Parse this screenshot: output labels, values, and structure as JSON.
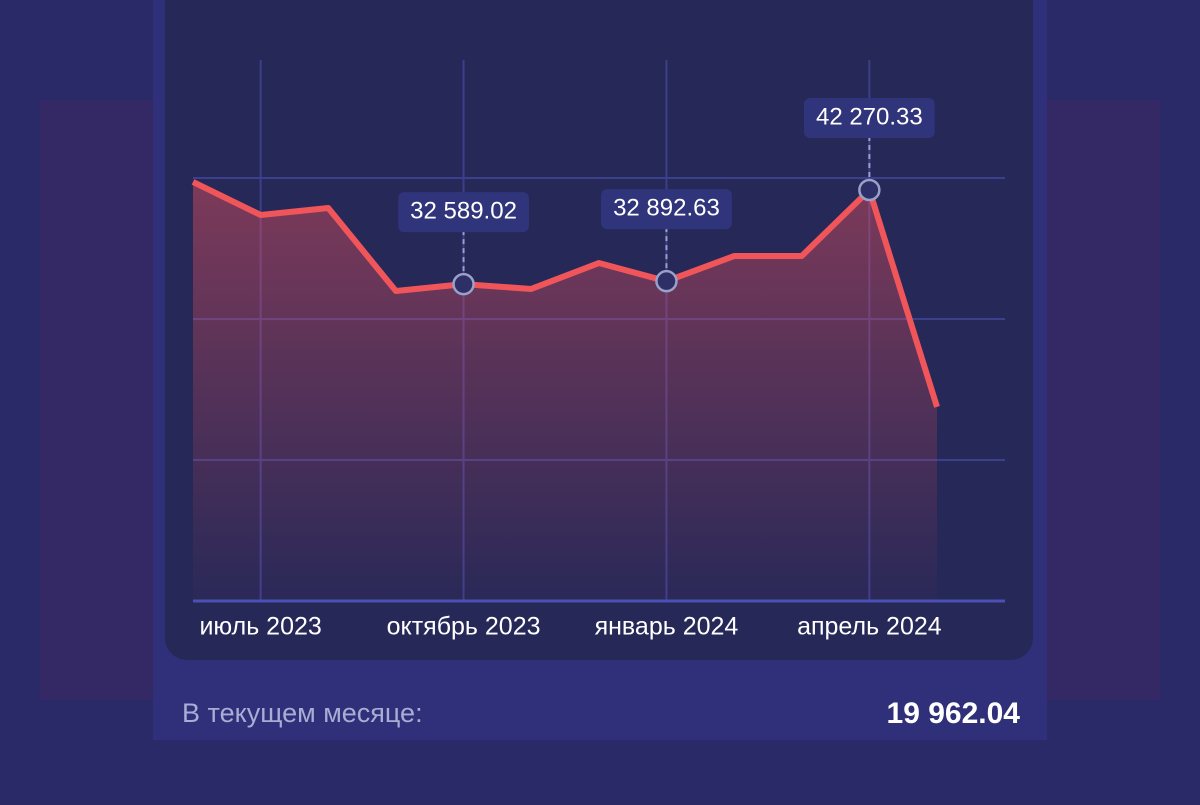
{
  "chart_data": {
    "type": "line",
    "categories": [
      null,
      "июль 2023",
      null,
      null,
      "октябрь 2023",
      null,
      null,
      "январь 2024",
      null,
      null,
      "апрель 2024",
      null
    ],
    "series": [
      {
        "color": "#f0555a",
        "values": [
          43094,
          39700,
          40420,
          31880,
          32589.02,
          32090,
          34760,
          32892.63,
          35480,
          35480,
          42270.33,
          19962.04
        ],
        "value_labels": [
          null,
          null,
          null,
          null,
          "32 589.02",
          null,
          null,
          "32 892.63",
          null,
          null,
          "42 270.33",
          null
        ]
      }
    ],
    "ylim": [
      0,
      55640
    ]
  },
  "summary": {
    "label": "В текущем месяце:",
    "value": "19 962.04"
  }
}
